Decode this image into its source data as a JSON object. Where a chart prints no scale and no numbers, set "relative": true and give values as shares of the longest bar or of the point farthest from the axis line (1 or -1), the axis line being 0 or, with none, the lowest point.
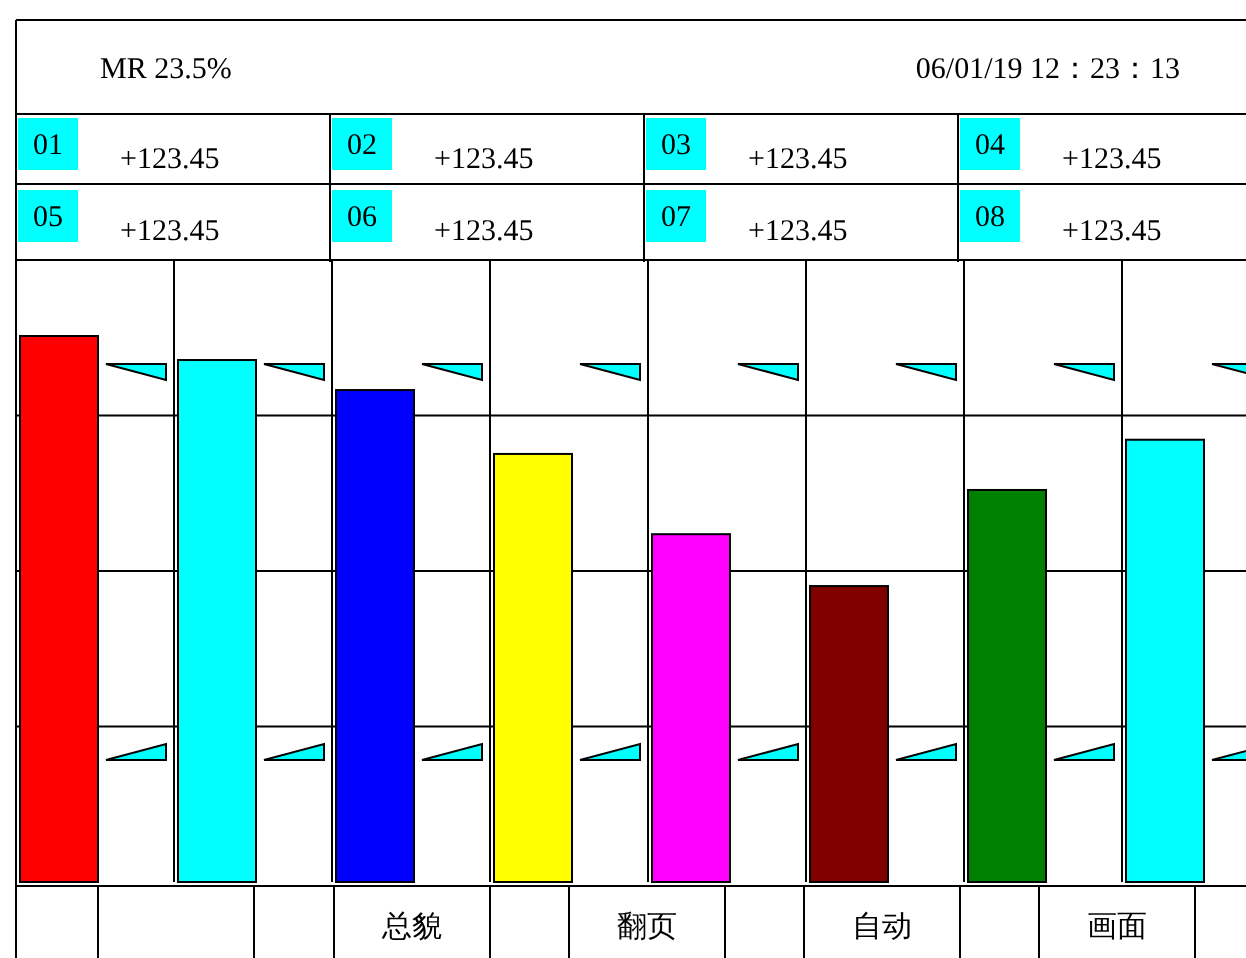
{
  "chart_data": {
    "type": "bar",
    "relative": true,
    "grid": true,
    "categories": [
      null,
      null,
      null,
      null,
      null,
      null,
      null,
      null
    ],
    "values": [
      1,
      0.956,
      0.901,
      0.784,
      0.637,
      0.542,
      0.718,
      0.81
    ],
    "colors": [
      "#ff0000",
      "#00ffff",
      "#0000ff",
      "#ffff00",
      "#ff00ff",
      "#800000",
      "#008000",
      "#00ffff"
    ],
    "annotations": [
      "MR 23.5%",
      "06/01/19  12：23：13",
      "01",
      "+123.45",
      "02",
      "+123.45",
      "03",
      "+123.45",
      "04",
      "+123.45",
      "05",
      "+123.45",
      "06",
      "+123.45",
      "07",
      "+123.45",
      "08",
      "+123.45",
      "总貌",
      "翻页",
      "自动",
      "画面"
    ]
  }
}
